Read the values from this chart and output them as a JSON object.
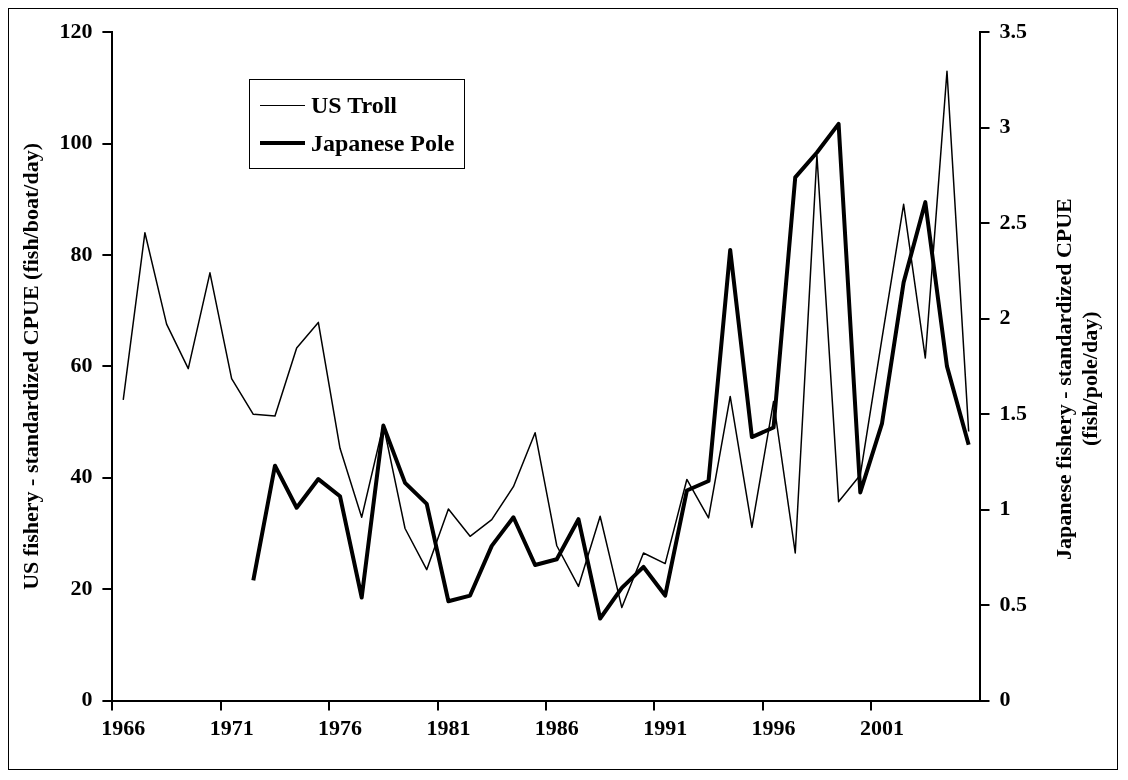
{
  "chart_data": {
    "type": "line",
    "categories": [
      "1966",
      null,
      null,
      null,
      null,
      "1971",
      null,
      null,
      null,
      null,
      "1976",
      null,
      null,
      null,
      null,
      "1981",
      null,
      null,
      null,
      null,
      "1986",
      null,
      null,
      null,
      null,
      "1991",
      null,
      null,
      null,
      null,
      "1996",
      null,
      null,
      null,
      null,
      "2001",
      null,
      null,
      null,
      null
    ],
    "series": [
      {
        "name": "US Troll",
        "color": "#000000",
        "values": [
          54,
          84,
          67.6,
          59.6,
          76.8,
          57.8,
          51.4,
          51.1,
          63.3,
          67.9,
          45.3,
          32.9,
          49.5,
          30.9,
          23.5,
          34.4,
          29.5,
          32.5,
          38.4,
          48.1,
          27.8,
          20.5,
          33.1,
          16.7,
          26.5,
          24.6,
          39.7,
          32.8,
          54.6,
          31.1,
          53.7,
          26.5,
          97.9,
          35.7,
          40.5,
          65,
          89.1,
          61.5,
          113,
          48.3
        ]
      },
      {
        "name": "Japanese Pole",
        "color": "#000000",
        "axis": "y2",
        "values": [
          null,
          null,
          null,
          null,
          null,
          null,
          0.63,
          1.23,
          1.01,
          1.16,
          1.07,
          0.54,
          1.44,
          1.14,
          1.03,
          0.52,
          0.55,
          0.81,
          0.96,
          0.71,
          0.74,
          0.95,
          0.43,
          0.59,
          0.7,
          0.55,
          1.1,
          1.15,
          2.36,
          1.38,
          1.43,
          2.74,
          2.87,
          3.02,
          1.09,
          1.45,
          2.19,
          2.61,
          1.75,
          1.34
        ]
      }
    ],
    "ylabel": "US fishery - standardized CPUE (fish/boat/day)",
    "y2label": "Japanese fishery - standardized CPUE (fish/pole/day)",
    "ylim": [
      0,
      120
    ],
    "yticks": [
      0,
      20,
      40,
      60,
      80,
      100,
      120
    ],
    "y2lim": [
      0,
      3.5
    ],
    "y2ticks": [
      0,
      0.5,
      1,
      1.5,
      2,
      2.5,
      3,
      3.5
    ],
    "legend": "top left",
    "grid": false,
    "marker": "none",
    "line_style": "solid"
  }
}
